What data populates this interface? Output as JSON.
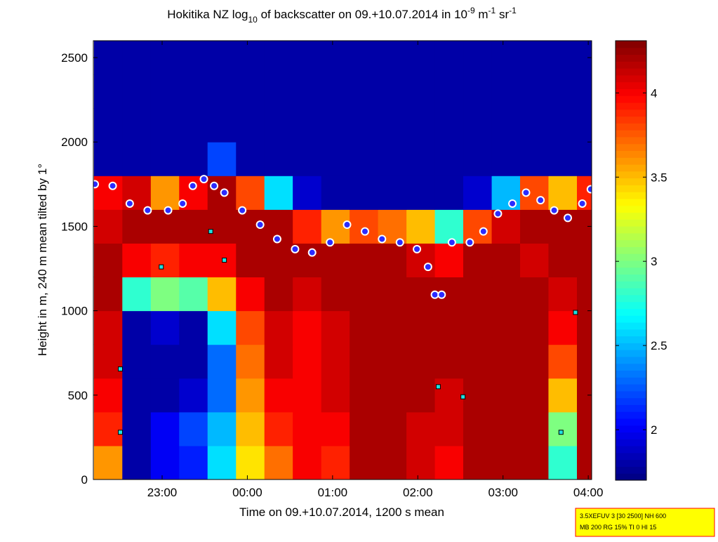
{
  "chart_data": {
    "type": "heatmap",
    "title": [
      "Hokitika NZ log",
      "10",
      " of backscatter on 09.+10.07.2014 in 10",
      "-9",
      " m",
      "-1",
      " sr",
      "-1"
    ],
    "xlabel": "Time on 09.+10.07.2014, 1200 s mean",
    "ylabel": "Height in m, 240 m mean tilted by 1°",
    "xlim": [
      22.193,
      28.04
    ],
    "xticks": [
      {
        "value": 23,
        "label": "23:00"
      },
      {
        "value": 24,
        "label": "00:00"
      },
      {
        "value": 25,
        "label": "01:00"
      },
      {
        "value": 26,
        "label": "02:00"
      },
      {
        "value": 27,
        "label": "03:00"
      },
      {
        "value": 28,
        "label": "04:00"
      }
    ],
    "ylim": [
      0,
      2600
    ],
    "yticks": [
      0,
      500,
      1000,
      1500,
      2000,
      2500
    ],
    "clim": [
      1.7,
      4.31
    ],
    "cticks": [
      2,
      2.5,
      3,
      3.5,
      4
    ],
    "colormap": "jet",
    "x_edges": [
      22.2,
      22.533,
      22.867,
      23.2,
      23.533,
      23.867,
      24.2,
      24.533,
      24.867,
      25.2,
      25.533,
      25.867,
      26.2,
      26.533,
      26.867,
      27.2,
      27.533,
      27.867,
      28.2
    ],
    "y_edges": [
      0,
      200,
      400,
      600,
      800,
      1000,
      1200,
      1400,
      1600,
      1800,
      2000,
      2200,
      2400,
      2600
    ],
    "z": [
      [
        3.6,
        1.8,
        2.0,
        2.1,
        2.6,
        3.4,
        3.7,
        4.0,
        3.9,
        4.2,
        4.2,
        4.1,
        4.0,
        4.2,
        4.2,
        4.2,
        2.8,
        4.2
      ],
      [
        3.9,
        1.8,
        2.0,
        2.2,
        2.5,
        3.5,
        3.9,
        4.0,
        4.0,
        4.2,
        4.2,
        4.1,
        4.1,
        4.2,
        4.2,
        4.2,
        3.0,
        4.2
      ],
      [
        4.0,
        1.8,
        1.8,
        1.9,
        2.3,
        3.6,
        4.0,
        4.0,
        4.1,
        4.2,
        4.2,
        4.2,
        4.1,
        4.2,
        4.2,
        4.2,
        3.5,
        4.2
      ],
      [
        4.1,
        1.8,
        1.8,
        1.8,
        2.3,
        3.7,
        4.1,
        4.0,
        4.1,
        4.2,
        4.2,
        4.2,
        4.2,
        4.2,
        4.2,
        4.2,
        3.8,
        4.2
      ],
      [
        4.1,
        1.8,
        1.9,
        1.8,
        2.6,
        3.8,
        4.1,
        4.0,
        4.1,
        4.2,
        4.2,
        4.2,
        4.2,
        4.2,
        4.2,
        4.2,
        4.0,
        4.2
      ],
      [
        4.2,
        2.8,
        3.0,
        2.9,
        3.5,
        4.0,
        4.2,
        4.1,
        4.2,
        4.2,
        4.2,
        4.2,
        4.2,
        4.2,
        4.2,
        4.2,
        4.1,
        4.2
      ],
      [
        4.2,
        4.0,
        3.9,
        4.0,
        4.0,
        4.2,
        4.2,
        4.2,
        4.2,
        4.2,
        4.2,
        4.1,
        4.0,
        4.2,
        4.2,
        4.1,
        4.2,
        4.2
      ],
      [
        4.1,
        4.2,
        4.2,
        4.2,
        4.2,
        4.2,
        4.2,
        3.9,
        3.6,
        3.8,
        3.7,
        3.5,
        2.8,
        3.8,
        4.1,
        4.2,
        4.2,
        4.2
      ],
      [
        4.0,
        4.1,
        3.6,
        4.0,
        4.2,
        3.8,
        2.6,
        1.9,
        1.8,
        1.8,
        1.8,
        1.8,
        1.8,
        1.9,
        2.5,
        3.8,
        3.5,
        3.9
      ],
      [
        1.8,
        1.8,
        1.8,
        1.8,
        2.2,
        1.8,
        1.8,
        1.8,
        1.8,
        1.8,
        1.8,
        1.8,
        1.8,
        1.8,
        1.8,
        1.8,
        1.8,
        1.8
      ],
      [
        1.8,
        1.8,
        1.8,
        1.8,
        1.8,
        1.8,
        1.8,
        1.8,
        1.8,
        1.8,
        1.8,
        1.8,
        1.8,
        1.8,
        1.8,
        1.8,
        1.8,
        1.8
      ],
      [
        1.8,
        1.8,
        1.8,
        1.8,
        1.8,
        1.8,
        1.8,
        1.8,
        1.8,
        1.8,
        1.8,
        1.8,
        1.8,
        1.8,
        1.8,
        1.8,
        1.8,
        1.8
      ],
      [
        1.8,
        1.8,
        1.8,
        1.8,
        1.8,
        1.8,
        1.8,
        1.8,
        1.8,
        1.8,
        1.8,
        1.8,
        1.8,
        1.8,
        1.8,
        1.8,
        1.8,
        1.8
      ]
    ],
    "series": [
      {
        "marker": "circle",
        "color": "#2b2bff",
        "x": [
          22.21,
          22.42,
          22.62,
          22.83,
          23.07,
          23.24,
          23.36,
          23.49,
          23.61,
          23.73,
          23.94,
          24.15,
          24.35,
          24.56,
          24.76,
          24.97,
          25.17,
          25.38,
          25.58,
          25.79,
          25.99,
          26.12,
          26.2,
          26.28,
          26.4,
          26.61,
          26.77,
          26.94,
          27.11,
          27.27,
          27.44,
          27.6,
          27.76,
          27.93,
          28.03
        ],
        "values": [
          1750,
          1740,
          1635,
          1595,
          1595,
          1635,
          1740,
          1780,
          1740,
          1700,
          1595,
          1510,
          1425,
          1365,
          1345,
          1405,
          1510,
          1470,
          1425,
          1405,
          1365,
          1260,
          1095,
          1095,
          1405,
          1405,
          1470,
          1575,
          1635,
          1700,
          1655,
          1595,
          1550,
          1635,
          1720
        ]
      },
      {
        "marker": "square",
        "color": "#20e0e0",
        "x": [
          22.51,
          22.51,
          22.99,
          23.57,
          23.73,
          26.24,
          26.53,
          27.68,
          27.85
        ],
        "values": [
          280,
          655,
          1260,
          1470,
          1300,
          550,
          490,
          280,
          990
        ]
      }
    ],
    "info": [
      "3.5XEFUV 3 [30 2500] NH 600",
      "MB 200 RG 15% TI 0 HI 15"
    ]
  }
}
